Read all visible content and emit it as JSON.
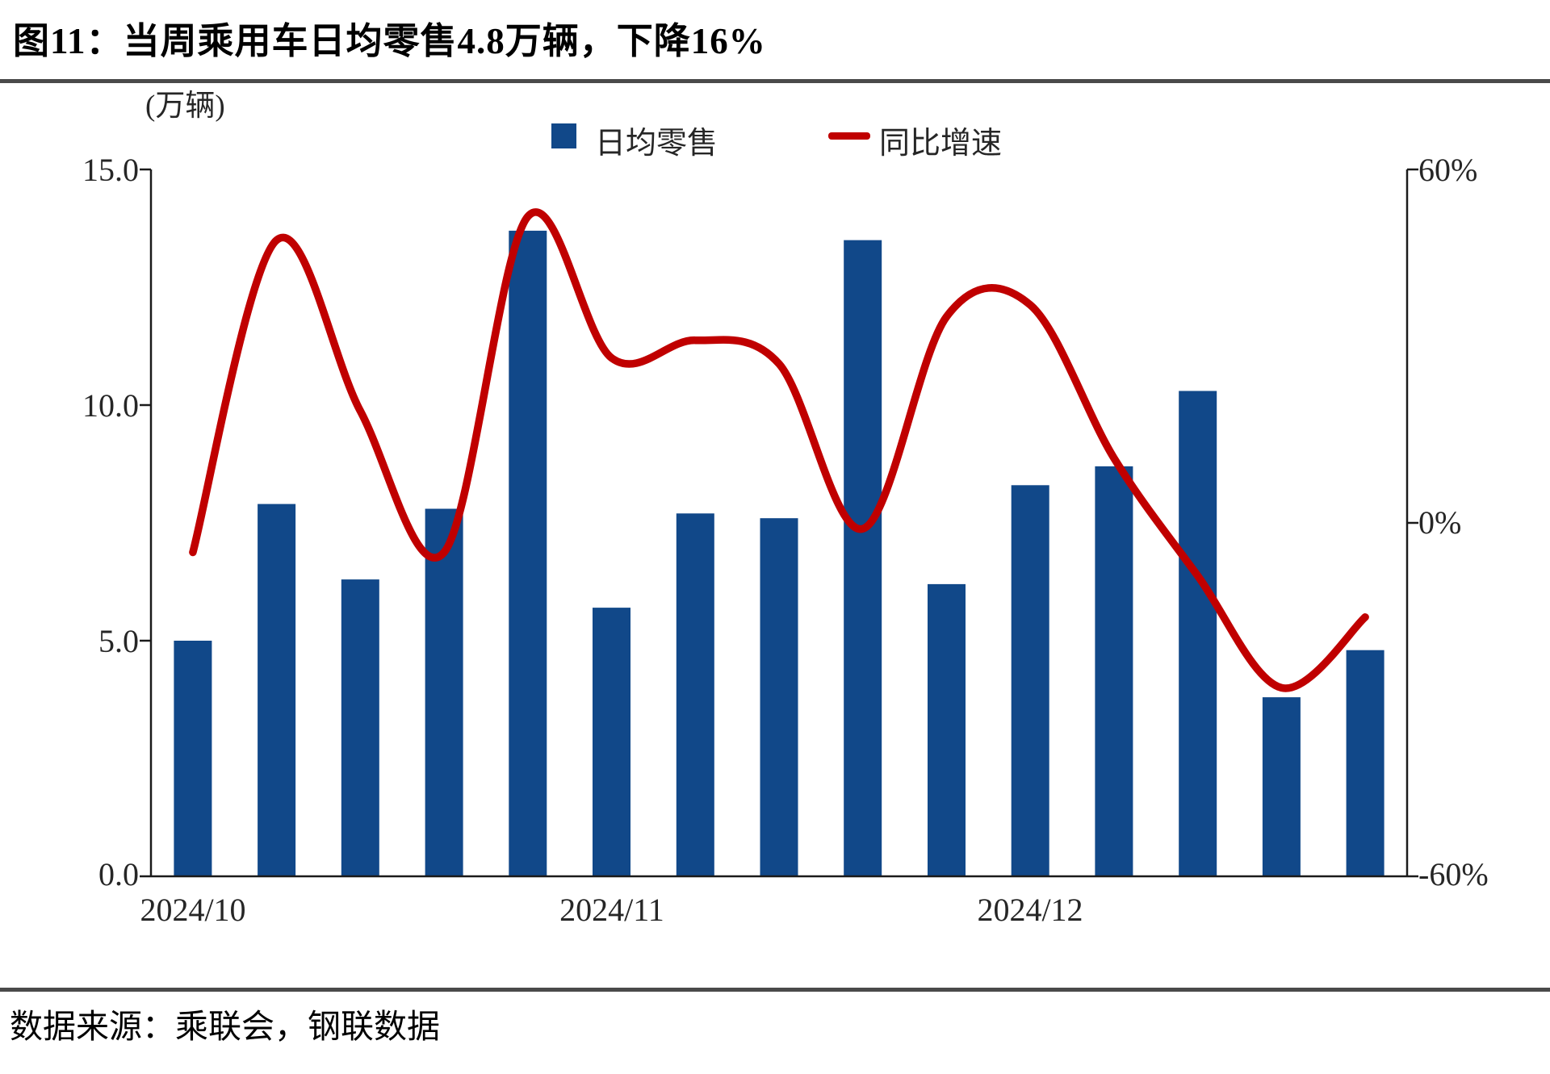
{
  "page": {
    "title": "图11：当周乘用车日均零售4.8万辆，下降16%",
    "source": "数据来源：乘联会，钢联数据"
  },
  "legend": {
    "position": "top-center",
    "bar_swatch_color": "#114889",
    "line_swatch_color": "#C00000"
  },
  "chart_data": {
    "type": "bar",
    "subtype": "bar+line combo, weekly series",
    "title": "图11：当周乘用车日均零售4.8万辆，下降16%",
    "unit_label": "(万辆)",
    "grid": false,
    "x_axis": {
      "weeks": 15,
      "tick_labels": [
        "2024/10",
        "2024/11",
        "2024/12"
      ],
      "tick_week_indices": [
        0,
        5,
        10
      ]
    },
    "left_axis": {
      "tick_labels": [
        "15.0",
        "10.0",
        "5.0",
        "0.0"
      ],
      "min": 0,
      "max": 15
    },
    "right_axis": {
      "tick_labels": [
        "60%",
        "0%",
        "-60%"
      ],
      "min": -60,
      "max": 60
    },
    "series": [
      {
        "name": "日均零售",
        "type": "bar",
        "axis": "left",
        "color": "#114889",
        "values": [
          5.0,
          7.9,
          6.3,
          7.8,
          13.7,
          5.7,
          7.7,
          7.6,
          13.5,
          6.2,
          8.3,
          8.7,
          10.3,
          3.8,
          4.8
        ]
      },
      {
        "name": "同比增速",
        "type": "line",
        "axis": "right",
        "color": "#C00000",
        "values_pct": [
          -5,
          48,
          19,
          -5,
          52,
          28,
          31,
          27,
          -1,
          35,
          37,
          11,
          -9,
          -28,
          -16
        ]
      }
    ]
  }
}
